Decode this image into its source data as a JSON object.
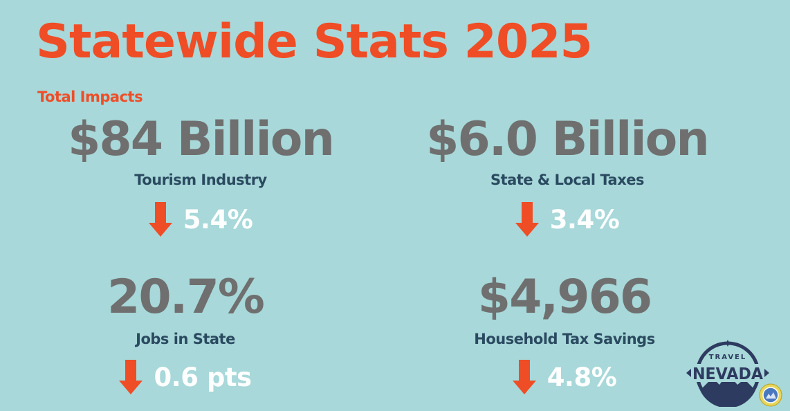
{
  "title": "Statewide Stats 2025",
  "subtitle": "Total Impacts",
  "colors": {
    "background": "#a8d8d9",
    "accent": "#ef4d26",
    "stat_value": "#6f6f6f",
    "stat_label": "#2a4a60",
    "change_text": "#ffffff"
  },
  "stats": [
    {
      "value": "$84 Billion",
      "label": "Tourism Industry",
      "change": "5.4%",
      "direction": "down",
      "icon": "down-arrow-icon"
    },
    {
      "value": "$6.0 Billion",
      "label": "State & Local Taxes",
      "change": "3.4%",
      "direction": "down",
      "icon": "down-arrow-icon"
    },
    {
      "value": "20.7%",
      "label": "Jobs in State",
      "change": "0.6 pts",
      "direction": "down",
      "icon": "down-arrow-icon"
    },
    {
      "value": "$4,966",
      "label": "Household Tax Savings",
      "change": "4.8%",
      "direction": "down",
      "icon": "down-arrow-icon"
    }
  ],
  "logo": {
    "top_text": "TRAVEL",
    "main_text": "NEVADA",
    "icon": "travel-nevada-logo"
  },
  "seal": {
    "icon": "nevada-state-seal-icon"
  }
}
